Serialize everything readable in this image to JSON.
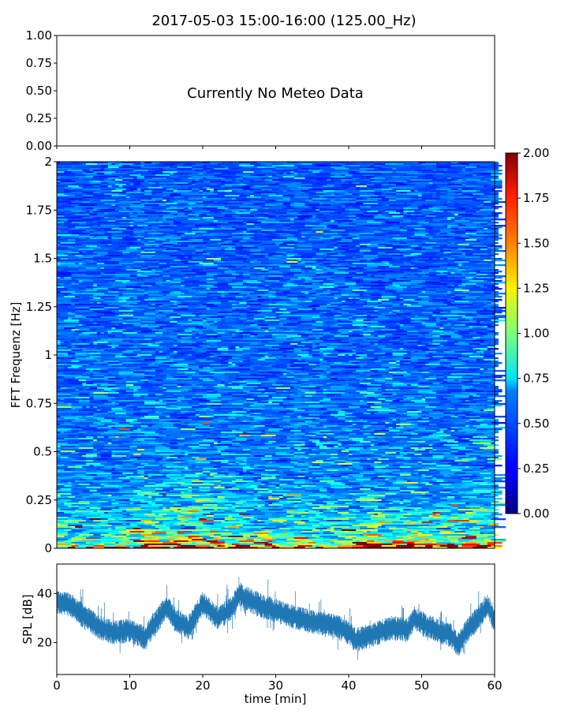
{
  "chart_data": [
    {
      "type": "line",
      "panel": "meteo",
      "title": "2017-05-03 15:00-16:00 (125.00_Hz)",
      "annotation": "Currently No Meteo Data",
      "ylim": [
        0,
        1
      ],
      "yticks": [
        "0.00",
        "0.25",
        "0.50",
        "0.75",
        "1.00"
      ],
      "ytick_values": [
        0,
        0.25,
        0.5,
        0.75,
        1.0
      ],
      "series": []
    },
    {
      "type": "heatmap",
      "panel": "spectrogram",
      "ylabel": "FFT Frequenz [Hz]",
      "xlim": [
        0,
        60
      ],
      "ylim": [
        0,
        2
      ],
      "yticks": [
        "0",
        "0.25",
        "0.5",
        "0.75",
        "1",
        "1.25",
        "1.5",
        "1.75",
        "2"
      ],
      "ytick_values": [
        0,
        0.25,
        0.5,
        0.75,
        1,
        1.25,
        1.5,
        1.75,
        2
      ],
      "colorscale": "jet",
      "colorbar": {
        "min": 0,
        "max": 2,
        "ticks": [
          "0.00",
          "0.25",
          "0.50",
          "0.75",
          "1.00",
          "1.25",
          "1.50",
          "1.75",
          "2.00"
        ],
        "tick_values": [
          0,
          0.25,
          0.5,
          0.75,
          1,
          1.25,
          1.5,
          1.75,
          2
        ]
      },
      "frequency_profile_hz_mean": [
        [
          0.0,
          1.7
        ],
        [
          0.02,
          0.9
        ],
        [
          0.05,
          0.65
        ],
        [
          0.1,
          0.5
        ],
        [
          0.2,
          0.42
        ],
        [
          0.3,
          0.36
        ],
        [
          0.5,
          0.3
        ],
        [
          0.75,
          0.27
        ],
        [
          1.0,
          0.25
        ],
        [
          1.5,
          0.23
        ],
        [
          2.0,
          0.22
        ]
      ]
    },
    {
      "type": "line",
      "panel": "spl",
      "xlabel": "time [min]",
      "ylabel": "SPL [dB]",
      "xlim": [
        0,
        60
      ],
      "ylim": [
        7,
        52
      ],
      "xticks": [
        "0",
        "10",
        "20",
        "30",
        "40",
        "50",
        "60"
      ],
      "xtick_values": [
        0,
        10,
        20,
        30,
        40,
        50,
        60
      ],
      "yticks": [
        "20",
        "40"
      ],
      "ytick_values": [
        20,
        40
      ],
      "series_color": "#1f77b4",
      "trend_x": [
        0,
        2,
        4,
        6,
        8,
        10,
        12,
        13,
        14,
        15,
        16,
        18,
        19,
        20,
        22,
        24,
        25,
        26,
        28,
        30,
        32,
        34,
        36,
        38,
        40,
        41,
        42,
        44,
        46,
        48,
        49,
        50,
        52,
        54,
        55,
        56,
        58,
        59,
        60
      ],
      "trend_y": [
        37,
        35,
        30,
        26,
        24,
        25,
        22,
        26,
        30,
        35,
        30,
        26,
        31,
        36,
        30,
        34,
        40,
        38,
        35,
        33,
        31,
        29,
        28,
        27,
        24,
        21,
        22,
        24,
        26,
        25,
        30,
        28,
        25,
        23,
        19,
        24,
        31,
        35,
        29
      ]
    }
  ]
}
